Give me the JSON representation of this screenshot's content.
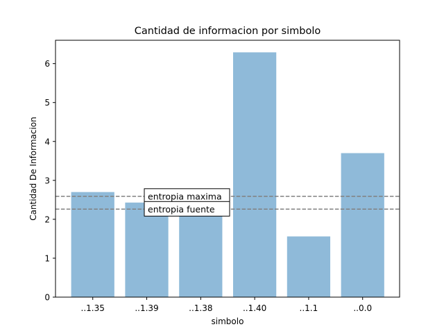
{
  "chart_data": {
    "type": "bar",
    "title": "Cantidad de informacion por simbolo",
    "xlabel": "simbolo",
    "ylabel": "Cantidad De Informacion",
    "categories": [
      "..1.35",
      "..1.39",
      "..1.38",
      "..1.40",
      "..1.1",
      "..0.0"
    ],
    "values": [
      2.7,
      2.43,
      2.24,
      6.29,
      1.56,
      3.7
    ],
    "ylim": [
      0,
      6.6
    ],
    "yticks": [
      0,
      1,
      2,
      3,
      4,
      5,
      6
    ],
    "bar_color": "#8fbad9",
    "grid": false,
    "reference_lines": [
      {
        "label": "entropia maxima",
        "value": 2.59,
        "color": "#808080",
        "style": "dashed"
      },
      {
        "label": "entropia fuente",
        "value": 2.26,
        "color": "#808080",
        "style": "dashed"
      }
    ]
  }
}
